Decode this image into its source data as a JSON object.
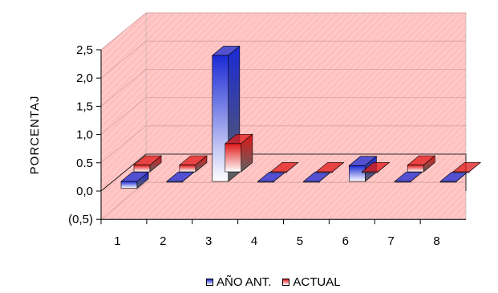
{
  "chart_data": {
    "type": "bar",
    "style": "3d-clustered-column",
    "categories": [
      "1",
      "2",
      "3",
      "4",
      "5",
      "6",
      "7",
      "8"
    ],
    "series": [
      {
        "name": "AÑO ANT.",
        "values": [
          -0.12,
          0.0,
          2.23,
          0.0,
          0.0,
          0.28,
          0.0,
          0.0
        ],
        "color": "#1a2ad4"
      },
      {
        "name": "ACTUAL",
        "values": [
          0.12,
          0.12,
          0.5,
          0.0,
          0.0,
          0.0,
          0.12,
          0.0
        ],
        "color": "#e01818"
      }
    ],
    "ylabel": "PORCENTAJ",
    "ylim": [
      -0.5,
      2.5
    ],
    "yticks": [
      -0.5,
      0.0,
      0.5,
      1.0,
      1.5,
      2.0,
      2.5
    ],
    "ytick_labels": [
      "(0,5)",
      "0,0",
      "0.5",
      "1,0",
      "1,5",
      "2,0",
      "2,5"
    ],
    "grid": true,
    "wall_color": "#ffc0c0",
    "legend_position": "bottom"
  }
}
